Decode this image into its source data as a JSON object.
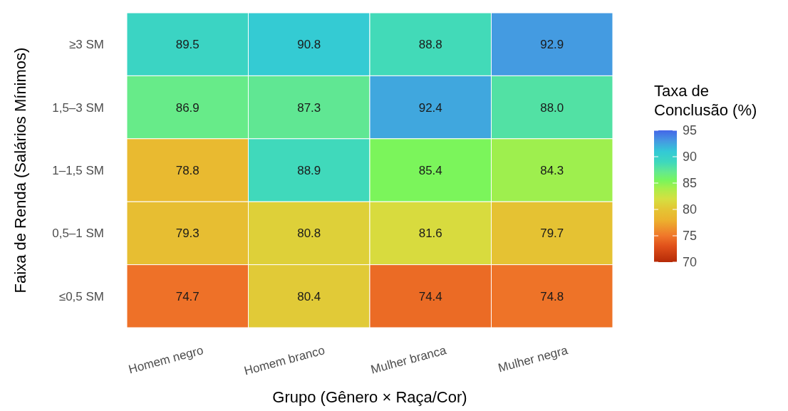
{
  "chart_data": {
    "type": "heatmap",
    "xlabel": "Grupo (Gênero × Raça/Cor)",
    "ylabel": "Faixa de Renda (Salários Mínimos)",
    "clabel": "Taxa de\nConclusão (%)",
    "categories": [
      "Homem negro",
      "Homem branco",
      "Mulher branca",
      "Mulher negra"
    ],
    "y_categories": [
      "≥3 SM",
      "1,5–3 SM",
      "1–1,5 SM",
      "0,5–1 SM",
      "≤0,5 SM"
    ],
    "cells": [
      [
        89.5,
        90.8,
        88.8,
        92.9
      ],
      [
        86.9,
        87.3,
        92.4,
        88.0
      ],
      [
        78.8,
        88.9,
        85.4,
        84.3
      ],
      [
        79.3,
        80.8,
        81.6,
        79.7
      ],
      [
        74.7,
        80.4,
        74.4,
        74.8
      ]
    ],
    "cell_labels": [
      [
        "89.5",
        "90.8",
        "88.8",
        "92.9"
      ],
      [
        "86.9",
        "87.3",
        "92.4",
        "88.0"
      ],
      [
        "78.8",
        "88.9",
        "85.4",
        "84.3"
      ],
      [
        "79.3",
        "80.8",
        "81.6",
        "79.7"
      ],
      [
        "74.7",
        "80.4",
        "74.4",
        "74.8"
      ]
    ],
    "clim": [
      70,
      95
    ],
    "cticks": [
      70,
      75,
      80,
      85,
      90,
      95
    ],
    "data_labels": true
  }
}
